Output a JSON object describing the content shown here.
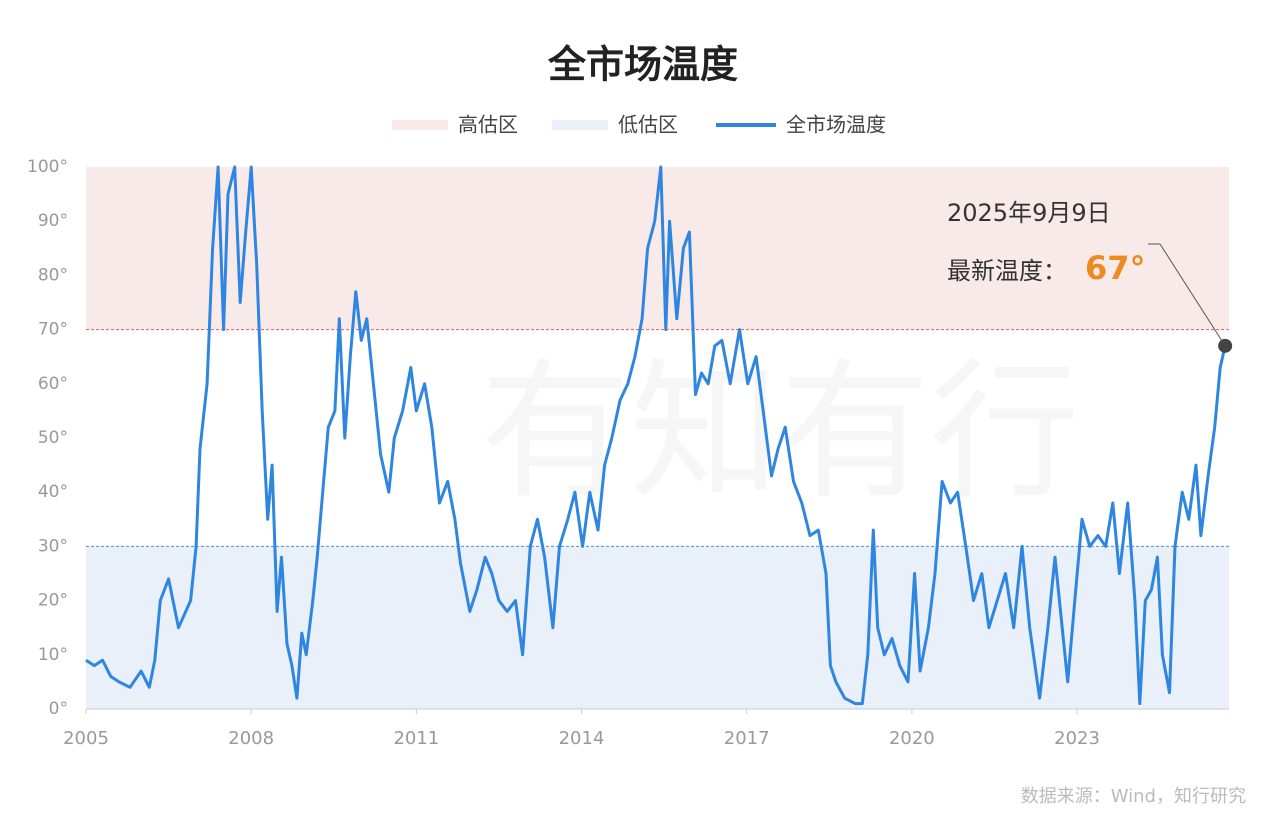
{
  "chart_data": {
    "type": "line",
    "title": "全市场温度",
    "watermark": "有知有行",
    "source": "数据来源：Wind，知行研究",
    "zones": [
      {
        "name": "高估区",
        "range": [
          70,
          100
        ],
        "color": "#f9eaea",
        "line": "#e06060"
      },
      {
        "name": "低估区",
        "range": [
          0,
          30
        ],
        "color": "#e9f0fa",
        "line": "#4a8fdc"
      }
    ],
    "series": [
      {
        "name": "全市场温度",
        "color": "#2f86e0",
        "x": [
          2005.0,
          2005.15,
          2005.3,
          2005.45,
          2005.6,
          2005.8,
          2006.0,
          2006.15,
          2006.25,
          2006.35,
          2006.5,
          2006.68,
          2006.9,
          2007.0,
          2007.07,
          2007.2,
          2007.3,
          2007.4,
          2007.5,
          2007.58,
          2007.7,
          2007.8,
          2007.9,
          2008.0,
          2008.1,
          2008.2,
          2008.3,
          2008.38,
          2008.47,
          2008.55,
          2008.65,
          2008.74,
          2008.83,
          2008.92,
          2009.0,
          2009.12,
          2009.2,
          2009.3,
          2009.4,
          2009.52,
          2009.6,
          2009.7,
          2009.8,
          2009.9,
          2010.0,
          2010.1,
          2010.2,
          2010.35,
          2010.5,
          2010.6,
          2010.75,
          2010.9,
          2011.0,
          2011.15,
          2011.28,
          2011.42,
          2011.57,
          2011.7,
          2011.8,
          2011.97,
          2012.1,
          2012.25,
          2012.37,
          2012.5,
          2012.65,
          2012.8,
          2012.93,
          2013.07,
          2013.2,
          2013.33,
          2013.48,
          2013.6,
          2013.75,
          2013.88,
          2014.02,
          2014.15,
          2014.3,
          2014.42,
          2014.55,
          2014.7,
          2014.84,
          2014.97,
          2015.1,
          2015.2,
          2015.33,
          2015.44,
          2015.53,
          2015.6,
          2015.73,
          2015.85,
          2015.96,
          2016.07,
          2016.18,
          2016.3,
          2016.42,
          2016.55,
          2016.7,
          2016.87,
          2017.02,
          2017.17,
          2017.3,
          2017.45,
          2017.57,
          2017.7,
          2017.85,
          2018.0,
          2018.15,
          2018.3,
          2018.44,
          2018.52,
          2018.62,
          2018.78,
          2018.97,
          2019.1,
          2019.2,
          2019.3,
          2019.38,
          2019.5,
          2019.64,
          2019.78,
          2019.93,
          2020.05,
          2020.15,
          2020.3,
          2020.42,
          2020.55,
          2020.7,
          2020.83,
          2020.98,
          2021.12,
          2021.27,
          2021.4,
          2021.55,
          2021.7,
          2021.85,
          2022.0,
          2022.14,
          2022.32,
          2022.47,
          2022.6,
          2022.73,
          2022.83,
          2022.96,
          2023.09,
          2023.23,
          2023.38,
          2023.52,
          2023.65,
          2023.77,
          2023.92,
          2024.05,
          2024.14,
          2024.24,
          2024.35,
          2024.46,
          2024.55,
          2024.68,
          2024.78,
          2024.91,
          2025.03,
          2025.16,
          2025.25,
          2025.38,
          2025.5,
          2025.6,
          2025.69
        ],
        "values": [
          9,
          8,
          9,
          6,
          5,
          4,
          7,
          4,
          9,
          20,
          24,
          15,
          20,
          30,
          48,
          60,
          85,
          100,
          70,
          95,
          100,
          75,
          88,
          100,
          82,
          55,
          35,
          45,
          18,
          28,
          12,
          8,
          2,
          14,
          10,
          20,
          28,
          40,
          52,
          55,
          72,
          50,
          65,
          77,
          68,
          72,
          62,
          47,
          40,
          50,
          55,
          63,
          55,
          60,
          52,
          38,
          42,
          35,
          27,
          18,
          22,
          28,
          25,
          20,
          18,
          20,
          10,
          30,
          35,
          28,
          15,
          30,
          35,
          40,
          30,
          40,
          33,
          45,
          50,
          57,
          60,
          65,
          72,
          85,
          90,
          100,
          70,
          90,
          72,
          85,
          88,
          58,
          62,
          60,
          67,
          68,
          60,
          70,
          60,
          65,
          55,
          43,
          48,
          52,
          42,
          38,
          32,
          33,
          25,
          8,
          5,
          2,
          1,
          1,
          10,
          33,
          15,
          10,
          13,
          8,
          5,
          25,
          7,
          15,
          25,
          42,
          38,
          40,
          30,
          20,
          25,
          15,
          20,
          25,
          15,
          30,
          15,
          2,
          15,
          28,
          15,
          5,
          20,
          35,
          30,
          32,
          30,
          38,
          25,
          38,
          20,
          1,
          20,
          22,
          28,
          10,
          3,
          30,
          40,
          35,
          45,
          32,
          43,
          52,
          63,
          67
        ]
      }
    ],
    "xlim": [
      2005,
      2025.76
    ],
    "xticks": [
      2005,
      2008,
      2011,
      2014,
      2017,
      2020,
      2023
    ],
    "ylim": [
      0,
      100
    ],
    "yticks": [
      {
        "value": 0,
        "label": "0°"
      },
      {
        "value": 10,
        "label": "10°"
      },
      {
        "value": 20,
        "label": "20°"
      },
      {
        "value": 30,
        "label": "30°"
      },
      {
        "value": 40,
        "label": "40°"
      },
      {
        "value": 50,
        "label": "50°"
      },
      {
        "value": 60,
        "label": "60°"
      },
      {
        "value": 70,
        "label": "70°"
      },
      {
        "value": 80,
        "label": "80°"
      },
      {
        "value": 90,
        "label": "90°"
      },
      {
        "value": 100,
        "label": "100°"
      }
    ],
    "annotation": {
      "date": "2025年9月9日",
      "label": "最新温度：",
      "value_label": "67°"
    }
  }
}
